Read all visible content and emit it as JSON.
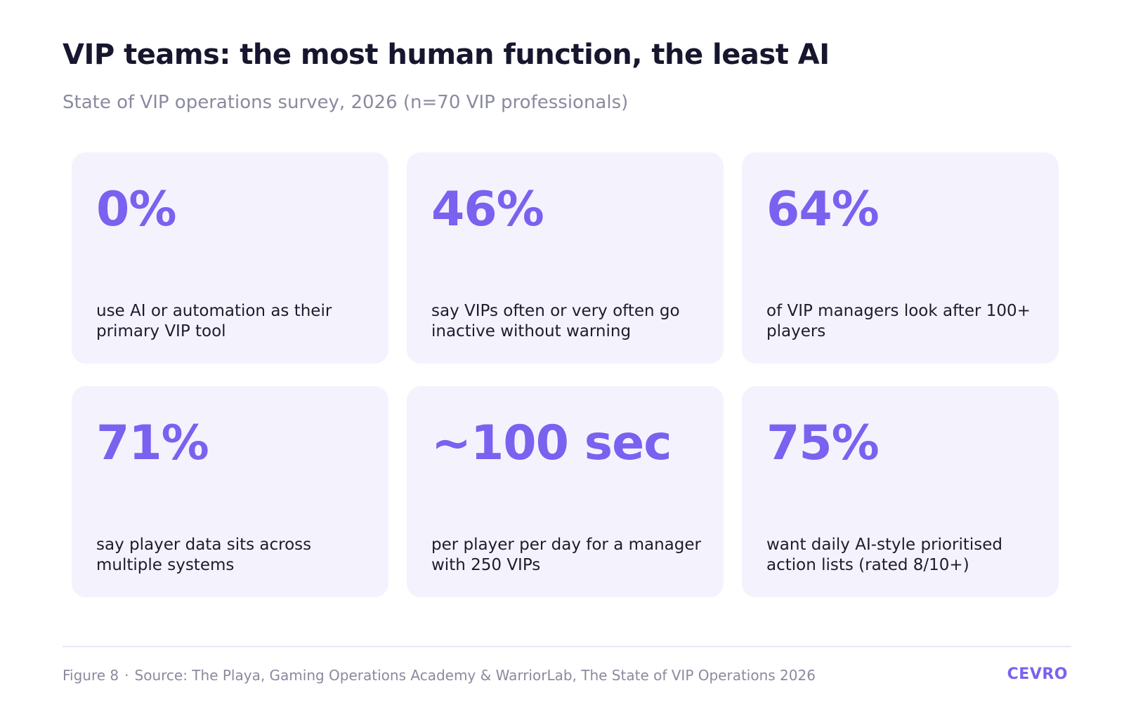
{
  "header": {
    "title": "VIP teams: the most human function, the least AI",
    "subtitle": "State of VIP operations survey, 2026 (n=70 VIP professionals)"
  },
  "cards": [
    {
      "stat": "0%",
      "description": "use AI or automation as their primary VIP tool"
    },
    {
      "stat": "46%",
      "description": "say VIPs often or very often go inactive without warning"
    },
    {
      "stat": "64%",
      "description": "of VIP managers look after 100+ players"
    },
    {
      "stat": "71%",
      "description": "say player data sits across multiple systems"
    },
    {
      "stat": "~100 sec",
      "description": "per player per day for a manager with 250 VIPs"
    },
    {
      "stat": "75%",
      "description": "want daily AI-style prioritised action lists (rated 8/10+)"
    }
  ],
  "footer": {
    "figure": "Figure 8",
    "separator": "·",
    "source": "Source: The Playa, Gaming Operations Academy & WarriorLab, The State of VIP Operations 2026",
    "brand": "CEVRO"
  },
  "colors": {
    "accent": "#7b61f0",
    "card_background": "#f4f3fd",
    "title": "#16162e",
    "muted": "#8a8a9f"
  }
}
